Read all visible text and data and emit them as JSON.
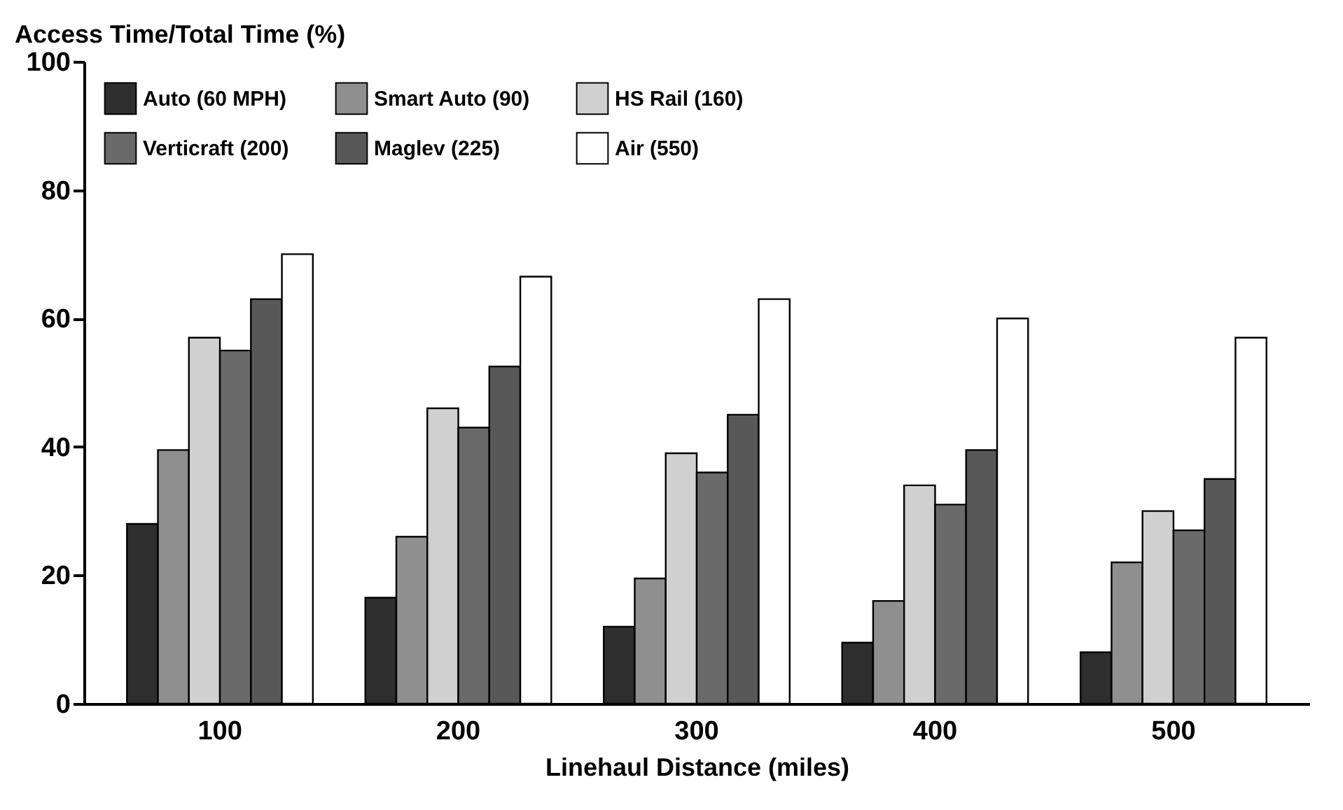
{
  "chart_data": {
    "type": "bar",
    "xlabel": "Linehaul Distance (miles)",
    "ylabel": "Access Time/Total Time (%)",
    "categories": [
      "100",
      "200",
      "300",
      "400",
      "500"
    ],
    "series": [
      {
        "name": "Auto (60 MPH)",
        "color": "#2e2e2e",
        "values": [
          28,
          16.5,
          12,
          9.5,
          8
        ]
      },
      {
        "name": "Smart Auto (90)",
        "color": "#8f8f8f",
        "values": [
          39.5,
          26,
          19.5,
          16,
          22
        ]
      },
      {
        "name": "HS Rail (160)",
        "color": "#d0d0d0",
        "values": [
          57,
          46,
          39,
          34,
          30
        ]
      },
      {
        "name": "Verticraft (200)",
        "color": "#6a6a6a",
        "values": [
          55,
          43,
          36,
          31,
          27
        ]
      },
      {
        "name": "Maglev (225)",
        "color": "#585858",
        "values": [
          63,
          52.5,
          45,
          39.5,
          35
        ]
      },
      {
        "name": "Air (550)",
        "color": "#ffffff",
        "values": [
          70,
          66.5,
          63,
          60,
          57
        ]
      }
    ],
    "ylim": [
      0,
      100
    ],
    "yticks": [
      0,
      20,
      40,
      60,
      80,
      100
    ],
    "legend": "top left"
  }
}
